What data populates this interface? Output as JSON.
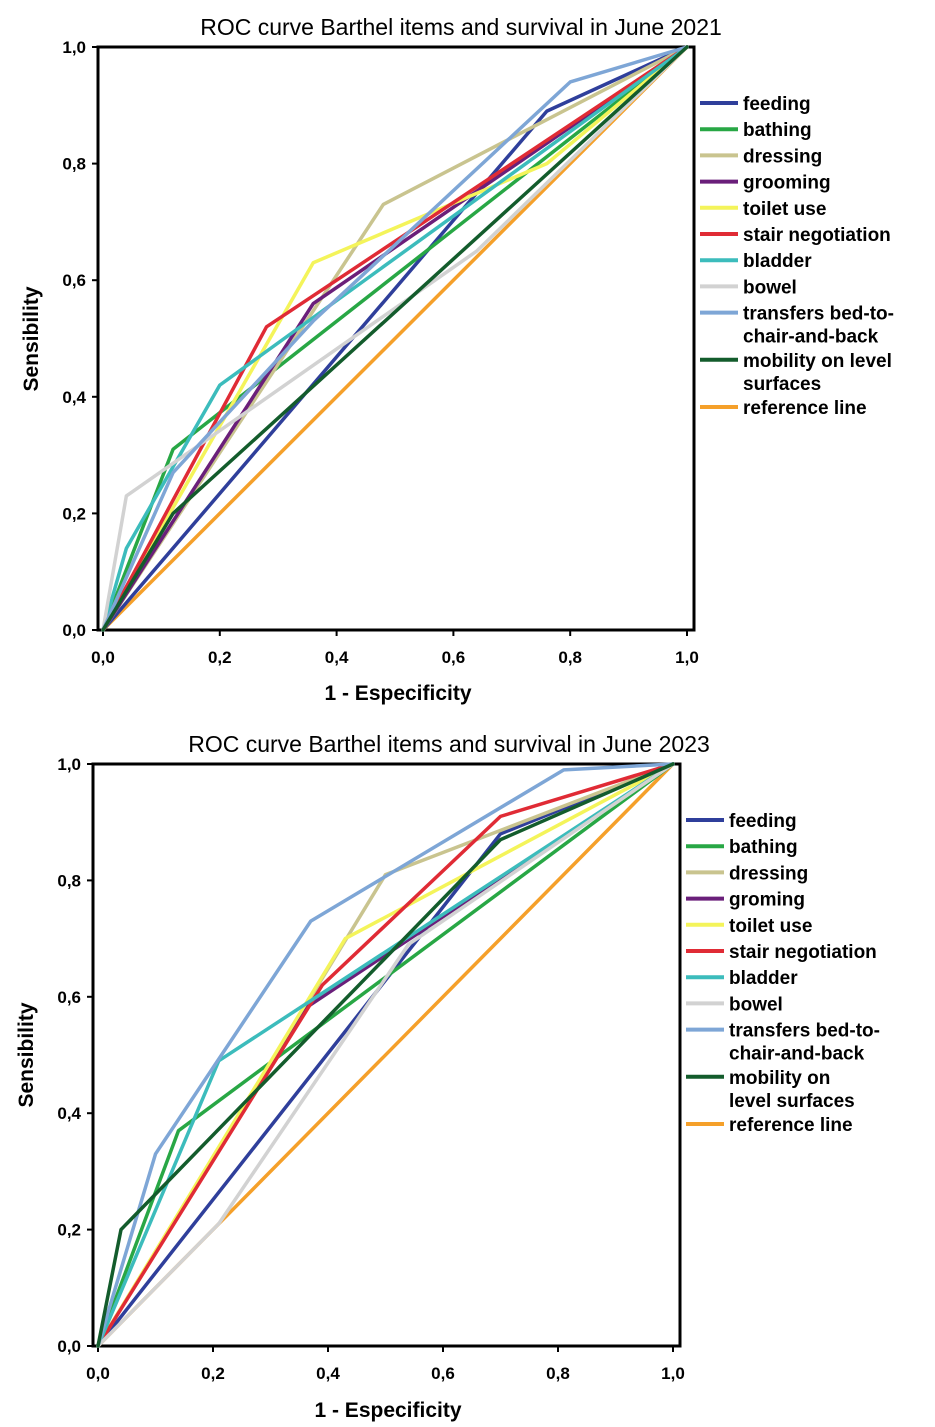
{
  "chart_data": [
    {
      "type": "line",
      "title": "ROC curve Barthel items and survival in June 2021",
      "xlabel": "1 - Especificity",
      "ylabel": "Sensibility",
      "xlim": [
        0,
        1
      ],
      "ylim": [
        0,
        1
      ],
      "x_ticks": [
        "0,0",
        "0,2",
        "0,4",
        "0,6",
        "0,8",
        "1,0"
      ],
      "y_ticks": [
        "0,0",
        "0,2",
        "0,4",
        "0,6",
        "0,8",
        "1,0"
      ],
      "legend_position": "right",
      "series": [
        {
          "name": "feeding",
          "color": "#2f3f9b",
          "points": [
            [
              0,
              0
            ],
            [
              0.76,
              0.89
            ],
            [
              1,
              1
            ]
          ]
        },
        {
          "name": "bathing",
          "color": "#28a745",
          "points": [
            [
              0,
              0
            ],
            [
              0.12,
              0.31
            ],
            [
              1,
              1
            ]
          ]
        },
        {
          "name": "dressing",
          "color": "#c9c48f",
          "points": [
            [
              0,
              0
            ],
            [
              0.48,
              0.73
            ],
            [
              1,
              1
            ]
          ]
        },
        {
          "name": "grooming",
          "color": "#6a1f7a",
          "points": [
            [
              0,
              0
            ],
            [
              0.36,
              0.56
            ],
            [
              1,
              1
            ]
          ]
        },
        {
          "name": "toilet use",
          "color": "#f4f45a",
          "points": [
            [
              0,
              0
            ],
            [
              0.36,
              0.63
            ],
            [
              0.76,
              0.8
            ],
            [
              1,
              1
            ]
          ]
        },
        {
          "name": "stair negotiation",
          "color": "#e02b35",
          "points": [
            [
              0,
              0
            ],
            [
              0.28,
              0.52
            ],
            [
              1,
              1
            ]
          ]
        },
        {
          "name": "bladder",
          "color": "#3cbcbc",
          "points": [
            [
              0,
              0
            ],
            [
              0.04,
              0.14
            ],
            [
              0.2,
              0.42
            ],
            [
              1,
              1
            ]
          ]
        },
        {
          "name": "bowel",
          "color": "#d2d2d2",
          "points": [
            [
              0,
              0
            ],
            [
              0.04,
              0.23
            ],
            [
              0.64,
              0.65
            ],
            [
              1,
              1
            ]
          ]
        },
        {
          "name": "transfers bed-to-chair-and-back",
          "color": "#7ea6d6",
          "points": [
            [
              0,
              0
            ],
            [
              0.12,
              0.27
            ],
            [
              0.36,
              0.53
            ],
            [
              0.8,
              0.94
            ],
            [
              1,
              1
            ]
          ]
        },
        {
          "name": "mobility on level surfaces",
          "color": "#135c2c",
          "points": [
            [
              0,
              0
            ],
            [
              0.12,
              0.2
            ],
            [
              1,
              1
            ]
          ]
        },
        {
          "name": "reference line",
          "color": "#f5a02a",
          "points": [
            [
              0,
              0
            ],
            [
              1,
              1
            ]
          ]
        }
      ],
      "legend": [
        {
          "label": "feeding",
          "color": "#2f3f9b"
        },
        {
          "label": "bathing",
          "color": "#28a745"
        },
        {
          "label": "dressing",
          "color": "#c9c48f"
        },
        {
          "label": "grooming",
          "color": "#6a1f7a"
        },
        {
          "label": "toilet use",
          "color": "#f4f45a"
        },
        {
          "label": "stair negotiation",
          "color": "#e02b35"
        },
        {
          "label": "bladder",
          "color": "#3cbcbc"
        },
        {
          "label": "bowel",
          "color": "#d2d2d2"
        },
        {
          "label": "transfers bed-to-\nchair-and-back",
          "color": "#7ea6d6"
        },
        {
          "label": "mobility on level\nsurfaces",
          "color": "#135c2c"
        },
        {
          "label": "reference line",
          "color": "#f5a02a"
        }
      ]
    },
    {
      "type": "line",
      "title": "ROC curve Barthel items and survival in June 2023",
      "xlabel": "1 - Especificity",
      "ylabel": "Sensibility",
      "xlim": [
        0,
        1
      ],
      "ylim": [
        0,
        1
      ],
      "x_ticks": [
        "0,0",
        "0,2",
        "0,4",
        "0,6",
        "0,8",
        "1,0"
      ],
      "y_ticks": [
        "0,0",
        "0,2",
        "0,4",
        "0,6",
        "0,8",
        "1,0"
      ],
      "legend_position": "right",
      "series": [
        {
          "name": "feeding",
          "color": "#2f3f9b",
          "points": [
            [
              0,
              0
            ],
            [
              0.7,
              0.88
            ],
            [
              1,
              1
            ]
          ]
        },
        {
          "name": "bathing",
          "color": "#28a745",
          "points": [
            [
              0,
              0
            ],
            [
              0.14,
              0.37
            ],
            [
              1,
              1
            ]
          ]
        },
        {
          "name": "dressing",
          "color": "#c9c48f",
          "points": [
            [
              0,
              0
            ],
            [
              0.5,
              0.81
            ],
            [
              1,
              1
            ]
          ]
        },
        {
          "name": "groming",
          "color": "#6a1f7a",
          "points": [
            [
              0,
              0
            ],
            [
              0.36,
              0.58
            ],
            [
              1,
              1
            ]
          ]
        },
        {
          "name": "toilet use",
          "color": "#f4f45a",
          "points": [
            [
              0,
              0
            ],
            [
              0.43,
              0.7
            ],
            [
              1,
              1
            ]
          ]
        },
        {
          "name": "stair negotiation",
          "color": "#e02b35",
          "points": [
            [
              0,
              0
            ],
            [
              0.39,
              0.62
            ],
            [
              0.7,
              0.91
            ],
            [
              1,
              1
            ]
          ]
        },
        {
          "name": "bladder",
          "color": "#3cbcbc",
          "points": [
            [
              0,
              0
            ],
            [
              0.21,
              0.49
            ],
            [
              1,
              1
            ]
          ]
        },
        {
          "name": "bowel",
          "color": "#d2d2d2",
          "points": [
            [
              0,
              0
            ],
            [
              0.21,
              0.21
            ],
            [
              0.54,
              0.69
            ],
            [
              1,
              1
            ]
          ]
        },
        {
          "name": "transfers bed-to-chair-and-back",
          "color": "#7ea6d6",
          "points": [
            [
              0,
              0
            ],
            [
              0.1,
              0.33
            ],
            [
              0.37,
              0.73
            ],
            [
              0.81,
              0.99
            ],
            [
              1,
              1
            ]
          ]
        },
        {
          "name": "mobility on level surfaces",
          "color": "#135c2c",
          "points": [
            [
              0,
              0
            ],
            [
              0.04,
              0.2
            ],
            [
              0.7,
              0.87
            ],
            [
              1,
              1
            ]
          ]
        },
        {
          "name": "reference line",
          "color": "#f5a02a",
          "points": [
            [
              0,
              0
            ],
            [
              1,
              1
            ]
          ]
        }
      ],
      "legend": [
        {
          "label": "feeding",
          "color": "#2f3f9b"
        },
        {
          "label": "bathing",
          "color": "#28a745"
        },
        {
          "label": "dressing",
          "color": "#c9c48f"
        },
        {
          "label": "groming",
          "color": "#6a1f7a"
        },
        {
          "label": "toilet use",
          "color": "#f4f45a"
        },
        {
          "label": "stair negotiation",
          "color": "#e02b35"
        },
        {
          "label": "bladder",
          "color": "#3cbcbc"
        },
        {
          "label": "bowel",
          "color": "#d2d2d2"
        },
        {
          "label": "transfers bed-to-\nchair-and-back",
          "color": "#7ea6d6"
        },
        {
          "label": "mobility on\nlevel surfaces",
          "color": "#135c2c"
        },
        {
          "label": "reference line",
          "color": "#f5a02a"
        }
      ]
    }
  ]
}
